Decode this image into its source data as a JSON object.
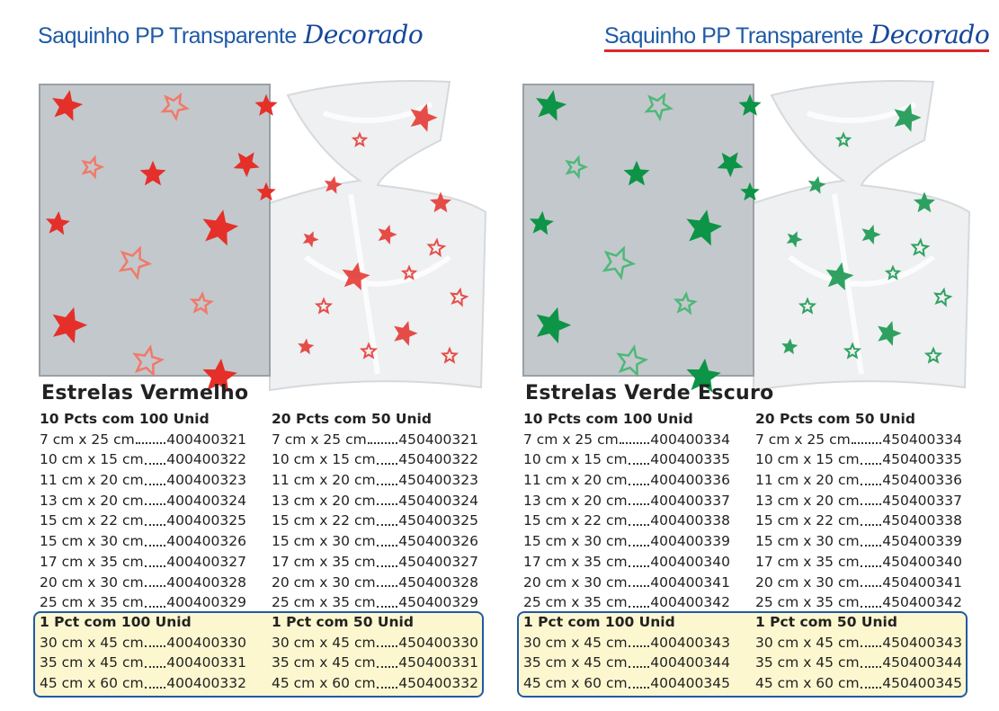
{
  "panels": [
    {
      "header": {
        "title": "Saquinho PP Transparente",
        "script": "Decorado"
      },
      "name": "Estrelas Vermelho",
      "columns": [
        {
          "heading": "10 Pcts com 100 Unid",
          "items": [
            {
              "size": "7 cm x 25 cm",
              "code": "400400321"
            },
            {
              "size": "10 cm x 15 cm",
              "code": "400400322"
            },
            {
              "size": "11 cm x 20 cm",
              "code": "400400323"
            },
            {
              "size": "13 cm x 20 cm",
              "code": "400400324"
            },
            {
              "size": "15 cm x 22 cm",
              "code": "400400325"
            },
            {
              "size": "15 cm x 30 cm",
              "code": "400400326"
            },
            {
              "size": "17 cm x 35 cm",
              "code": "400400327"
            },
            {
              "size": "20 cm x 30 cm",
              "code": "400400328"
            },
            {
              "size": "25 cm x 35 cm",
              "code": "400400329"
            }
          ]
        },
        {
          "heading": "20 Pcts com 50 Unid",
          "items": [
            {
              "size": "7 cm x 25 cm",
              "code": "450400321"
            },
            {
              "size": "10 cm x 15 cm",
              "code": "450400322"
            },
            {
              "size": "11 cm x 20 cm",
              "code": "450400323"
            },
            {
              "size": "13 cm x 20 cm",
              "code": "450400324"
            },
            {
              "size": "15 cm x 22 cm",
              "code": "450400325"
            },
            {
              "size": "15 cm x 30 cm",
              "code": "450400326"
            },
            {
              "size": "17 cm x 35 cm",
              "code": "450400327"
            },
            {
              "size": "20 cm x 30 cm",
              "code": "450400328"
            },
            {
              "size": "25 cm x 35 cm",
              "code": "450400329"
            }
          ]
        }
      ],
      "boxed": [
        {
          "heading": "1 Pct com 100 Unid",
          "items": [
            {
              "size": "30 cm x 45 cm",
              "code": "400400330"
            },
            {
              "size": "35 cm x 45 cm",
              "code": "400400331"
            },
            {
              "size": "45 cm x 60 cm",
              "code": "400400332"
            }
          ]
        },
        {
          "heading": "1 Pct com 50 Unid",
          "items": [
            {
              "size": "30 cm x 45 cm",
              "code": "450400330"
            },
            {
              "size": "35 cm x 45 cm",
              "code": "450400331"
            },
            {
              "size": "45 cm x 60 cm",
              "code": "450400332"
            }
          ]
        }
      ]
    },
    {
      "header": {
        "title": "Saquinho PP Transparente",
        "script": "Decorado"
      },
      "name": "Estrelas Verde Escuro",
      "columns": [
        {
          "heading": "10 Pcts com 100 Unid",
          "items": [
            {
              "size": "7 cm x 25 cm",
              "code": "400400334"
            },
            {
              "size": "10 cm x 15 cm",
              "code": "400400335"
            },
            {
              "size": "11 cm x 20 cm",
              "code": "400400336"
            },
            {
              "size": "13 cm x 20 cm",
              "code": "400400337"
            },
            {
              "size": "15 cm x 22 cm",
              "code": "400400338"
            },
            {
              "size": "15 cm x 30 cm",
              "code": "400400339"
            },
            {
              "size": "17 cm x 35 cm",
              "code": "400400340"
            },
            {
              "size": "20 cm x 30 cm",
              "code": "400400341"
            },
            {
              "size": "25 cm x 35 cm",
              "code": "400400342"
            }
          ]
        },
        {
          "heading": "20 Pcts com 50 Unid",
          "items": [
            {
              "size": "7 cm x 25 cm",
              "code": "450400334"
            },
            {
              "size": "10 cm x 15 cm",
              "code": "450400335"
            },
            {
              "size": "11 cm x 20 cm",
              "code": "450400336"
            },
            {
              "size": "13 cm x 20 cm",
              "code": "450400337"
            },
            {
              "size": "15 cm x 22 cm",
              "code": "450400338"
            },
            {
              "size": "15 cm x 30 cm",
              "code": "450400339"
            },
            {
              "size": "17 cm x 35 cm",
              "code": "450400340"
            },
            {
              "size": "20 cm x 30 cm",
              "code": "450400341"
            },
            {
              "size": "25 cm x 35 cm",
              "code": "450400342"
            }
          ]
        }
      ],
      "boxed": [
        {
          "heading": "1 Pct com 100 Unid",
          "items": [
            {
              "size": "30 cm x 45 cm",
              "code": "400400343"
            },
            {
              "size": "35 cm x 45 cm",
              "code": "400400344"
            },
            {
              "size": "45 cm x 60 cm",
              "code": "400400345"
            }
          ]
        },
        {
          "heading": "1 Pct com 50 Unid",
          "items": [
            {
              "size": "30 cm x 45 cm",
              "code": "450400343"
            },
            {
              "size": "35 cm x 45 cm",
              "code": "450400344"
            },
            {
              "size": "45 cm x 60 cm",
              "code": "450400345"
            }
          ]
        }
      ]
    }
  ]
}
